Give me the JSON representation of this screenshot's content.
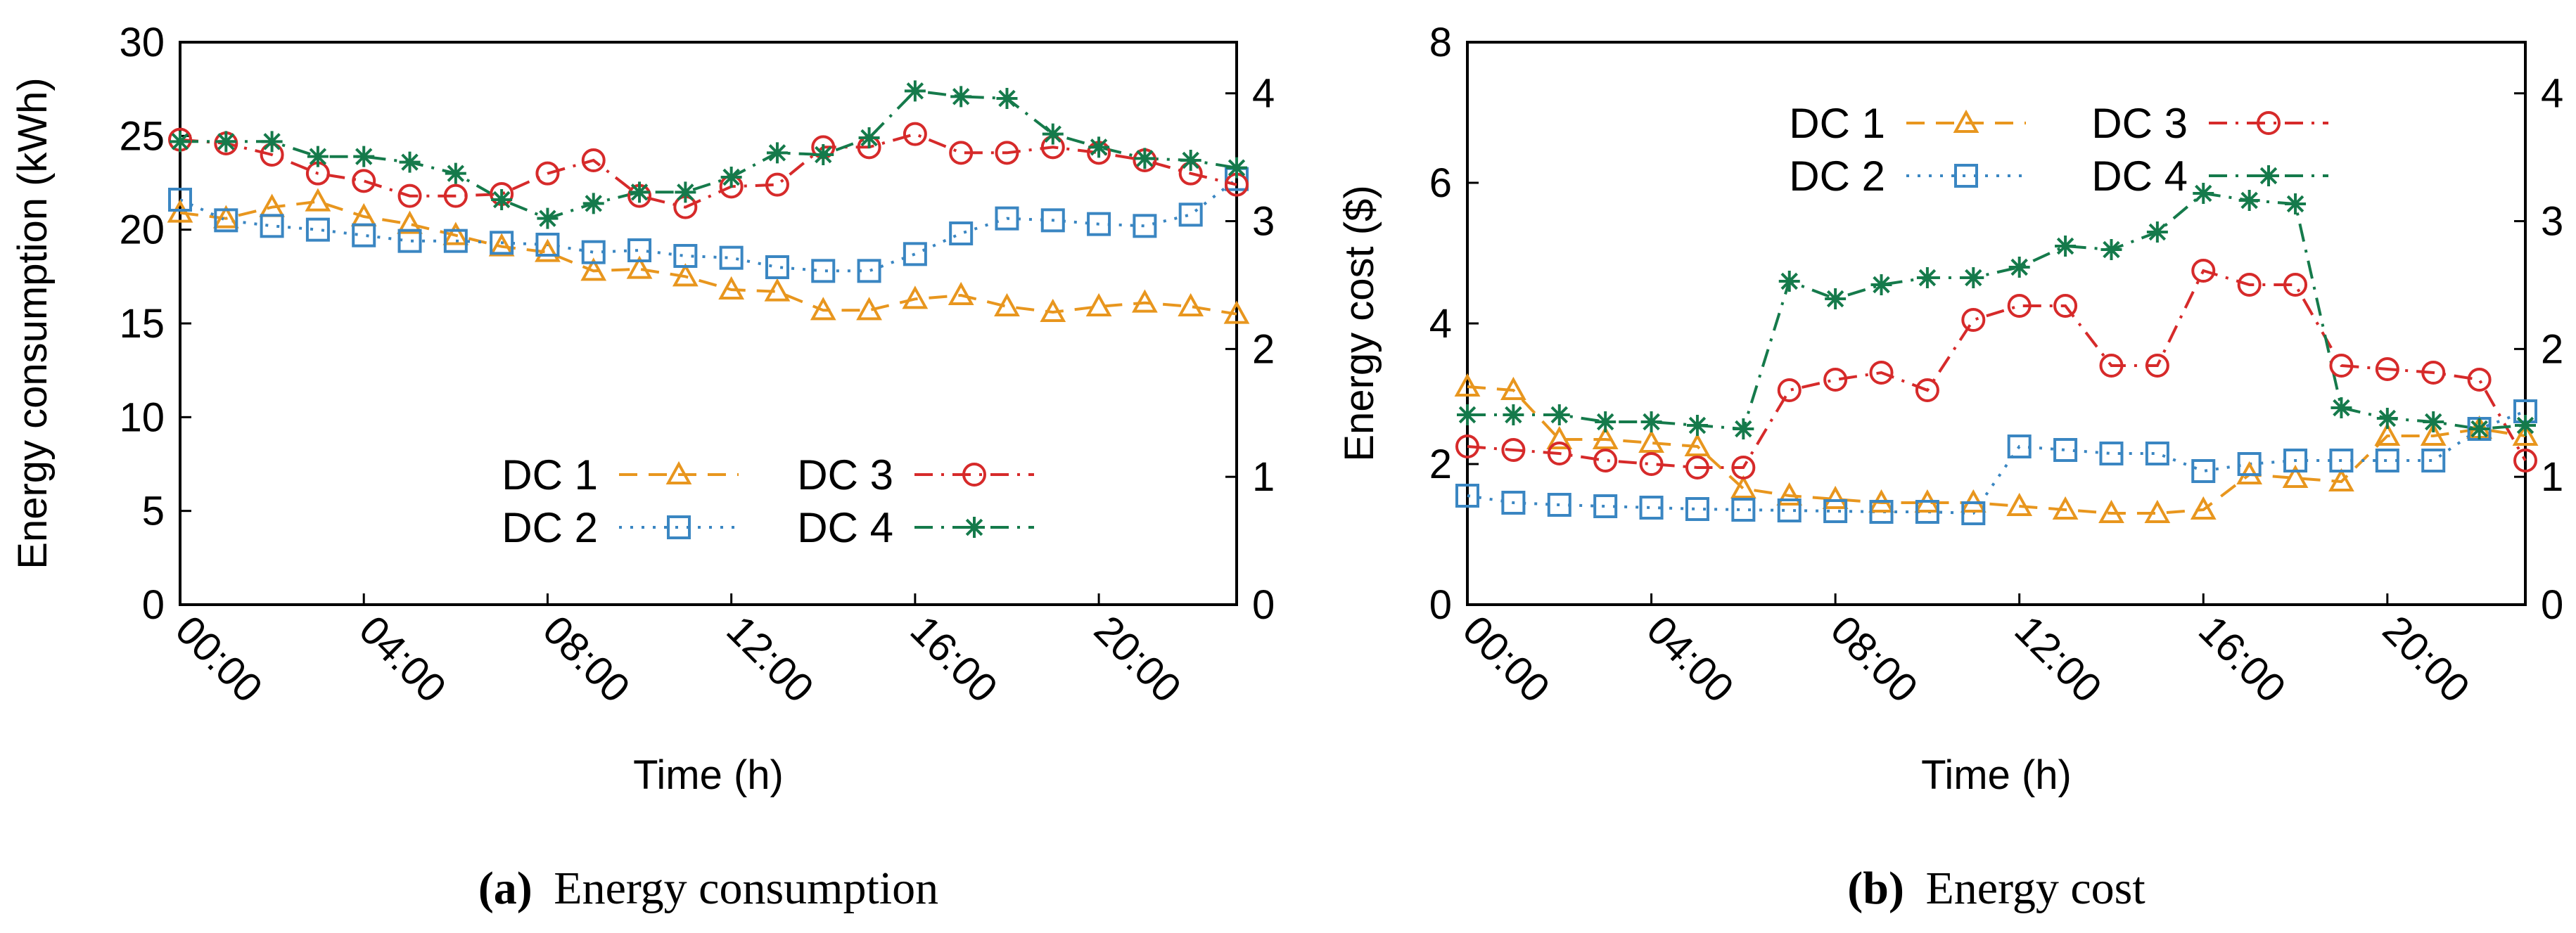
{
  "chart_data": [
    {
      "type": "line",
      "title": "",
      "caption_label": "(a)",
      "caption_text": "Energy consumption",
      "xlabel": "Time (h)",
      "ylabel": "Energy consumption (kWh)",
      "xlim": [
        0,
        23
      ],
      "ylim": [
        0,
        30
      ],
      "y2lim": [
        0,
        4.4
      ],
      "xticks": [
        {
          "v": 0,
          "label": "00:00"
        },
        {
          "v": 4,
          "label": "04:00"
        },
        {
          "v": 8,
          "label": "08:00"
        },
        {
          "v": 12,
          "label": "12:00"
        },
        {
          "v": 16,
          "label": "16:00"
        },
        {
          "v": 20,
          "label": "20:00"
        }
      ],
      "yticks": [
        {
          "v": 0,
          "label": "0"
        },
        {
          "v": 5,
          "label": "5"
        },
        {
          "v": 10,
          "label": "10"
        },
        {
          "v": 15,
          "label": "15"
        },
        {
          "v": 20,
          "label": "20"
        },
        {
          "v": 25,
          "label": "25"
        },
        {
          "v": 30,
          "label": "30"
        }
      ],
      "y2ticks": [
        {
          "v": 0,
          "label": "0"
        },
        {
          "v": 1,
          "label": "1"
        },
        {
          "v": 2,
          "label": "2"
        },
        {
          "v": 3,
          "label": "3"
        },
        {
          "v": 4,
          "label": "4"
        }
      ],
      "x": [
        0,
        1,
        2,
        3,
        4,
        5,
        6,
        7,
        8,
        9,
        10,
        11,
        12,
        13,
        14,
        15,
        16,
        17,
        18,
        19,
        20,
        21,
        22,
        23
      ],
      "series": [
        {
          "name": "DC 1",
          "marker": "triangle",
          "color": "#e8961e",
          "dash": "dashed",
          "values": [
            20.9,
            20.6,
            21.2,
            21.5,
            20.7,
            20.3,
            19.7,
            19.1,
            18.8,
            17.8,
            17.9,
            17.5,
            16.8,
            16.7,
            15.7,
            15.7,
            16.3,
            16.5,
            15.9,
            15.6,
            15.9,
            16.1,
            15.9,
            15.5
          ]
        },
        {
          "name": "DC 2",
          "marker": "square",
          "color": "#3a86c2",
          "dash": "dotted",
          "values": [
            21.6,
            20.5,
            20.2,
            20.0,
            19.7,
            19.4,
            19.4,
            19.3,
            19.2,
            18.8,
            18.9,
            18.6,
            18.5,
            18.0,
            17.8,
            17.8,
            18.7,
            19.8,
            20.6,
            20.5,
            20.3,
            20.2,
            20.8,
            22.7
          ]
        },
        {
          "name": "DC 3",
          "marker": "circle",
          "color": "#d62a2a",
          "dash": "dashdot",
          "values": [
            24.8,
            24.6,
            24.0,
            23.0,
            22.6,
            21.8,
            21.8,
            21.9,
            23.0,
            23.7,
            21.8,
            21.2,
            22.3,
            22.4,
            24.4,
            24.4,
            25.1,
            24.1,
            24.1,
            24.4,
            24.1,
            23.7,
            23.0,
            22.4
          ]
        },
        {
          "name": "DC 4",
          "marker": "asterisk",
          "color": "#157a4b",
          "dash": "dashdot",
          "values": [
            24.7,
            24.7,
            24.7,
            23.9,
            23.9,
            23.6,
            23.0,
            21.6,
            20.6,
            21.4,
            22.0,
            22.0,
            22.8,
            24.1,
            24.0,
            24.9,
            27.4,
            27.1,
            27.0,
            25.1,
            24.4,
            23.8,
            23.7,
            23.3
          ]
        }
      ]
    },
    {
      "type": "line",
      "title": "",
      "caption_label": "(b)",
      "caption_text": "Energy cost",
      "xlabel": "Time (h)",
      "ylabel": "Energy cost ($)",
      "xlim": [
        0,
        23
      ],
      "ylim": [
        0,
        8
      ],
      "y2lim": [
        0,
        4.4
      ],
      "xticks": [
        {
          "v": 0,
          "label": "00:00"
        },
        {
          "v": 4,
          "label": "04:00"
        },
        {
          "v": 8,
          "label": "08:00"
        },
        {
          "v": 12,
          "label": "12:00"
        },
        {
          "v": 16,
          "label": "16:00"
        },
        {
          "v": 20,
          "label": "20:00"
        }
      ],
      "yticks": [
        {
          "v": 0,
          "label": "0"
        },
        {
          "v": 2,
          "label": "2"
        },
        {
          "v": 4,
          "label": "4"
        },
        {
          "v": 6,
          "label": "6"
        },
        {
          "v": 8,
          "label": "8"
        }
      ],
      "y2ticks": [
        {
          "v": 0,
          "label": "0"
        },
        {
          "v": 1,
          "label": "1"
        },
        {
          "v": 2,
          "label": "2"
        },
        {
          "v": 3,
          "label": "3"
        },
        {
          "v": 4,
          "label": "4"
        }
      ],
      "x": [
        0,
        1,
        2,
        3,
        4,
        5,
        6,
        7,
        8,
        9,
        10,
        11,
        12,
        13,
        14,
        15,
        16,
        17,
        18,
        19,
        20,
        21,
        22,
        23
      ],
      "series": [
        {
          "name": "DC 1",
          "marker": "triangle",
          "color": "#e8961e",
          "dash": "dashed",
          "values": [
            3.1,
            3.05,
            2.35,
            2.35,
            2.3,
            2.25,
            1.65,
            1.55,
            1.5,
            1.45,
            1.45,
            1.45,
            1.4,
            1.35,
            1.3,
            1.3,
            1.35,
            1.85,
            1.8,
            1.75,
            2.4,
            2.4,
            2.5,
            2.4
          ]
        },
        {
          "name": "DC 2",
          "marker": "square",
          "color": "#3a86c2",
          "dash": "dotted",
          "values": [
            1.55,
            1.45,
            1.42,
            1.4,
            1.38,
            1.36,
            1.35,
            1.34,
            1.33,
            1.32,
            1.32,
            1.3,
            2.25,
            2.2,
            2.15,
            2.15,
            1.9,
            2.0,
            2.05,
            2.05,
            2.05,
            2.05,
            2.5,
            2.75
          ]
        },
        {
          "name": "DC 3",
          "marker": "circle",
          "color": "#d62a2a",
          "dash": "dashdot",
          "values": [
            2.25,
            2.2,
            2.15,
            2.05,
            2.0,
            1.95,
            1.95,
            3.05,
            3.2,
            3.3,
            3.05,
            4.05,
            4.25,
            4.25,
            3.4,
            3.4,
            4.75,
            4.55,
            4.55,
            3.4,
            3.35,
            3.3,
            3.2,
            2.05
          ]
        },
        {
          "name": "DC 4",
          "marker": "asterisk",
          "color": "#157a4b",
          "dash": "dashdot",
          "values": [
            2.7,
            2.7,
            2.7,
            2.6,
            2.6,
            2.55,
            2.5,
            4.6,
            4.35,
            4.55,
            4.65,
            4.65,
            4.8,
            5.1,
            5.05,
            5.3,
            5.85,
            5.75,
            5.7,
            2.8,
            2.65,
            2.6,
            2.5,
            2.55
          ]
        }
      ]
    }
  ]
}
